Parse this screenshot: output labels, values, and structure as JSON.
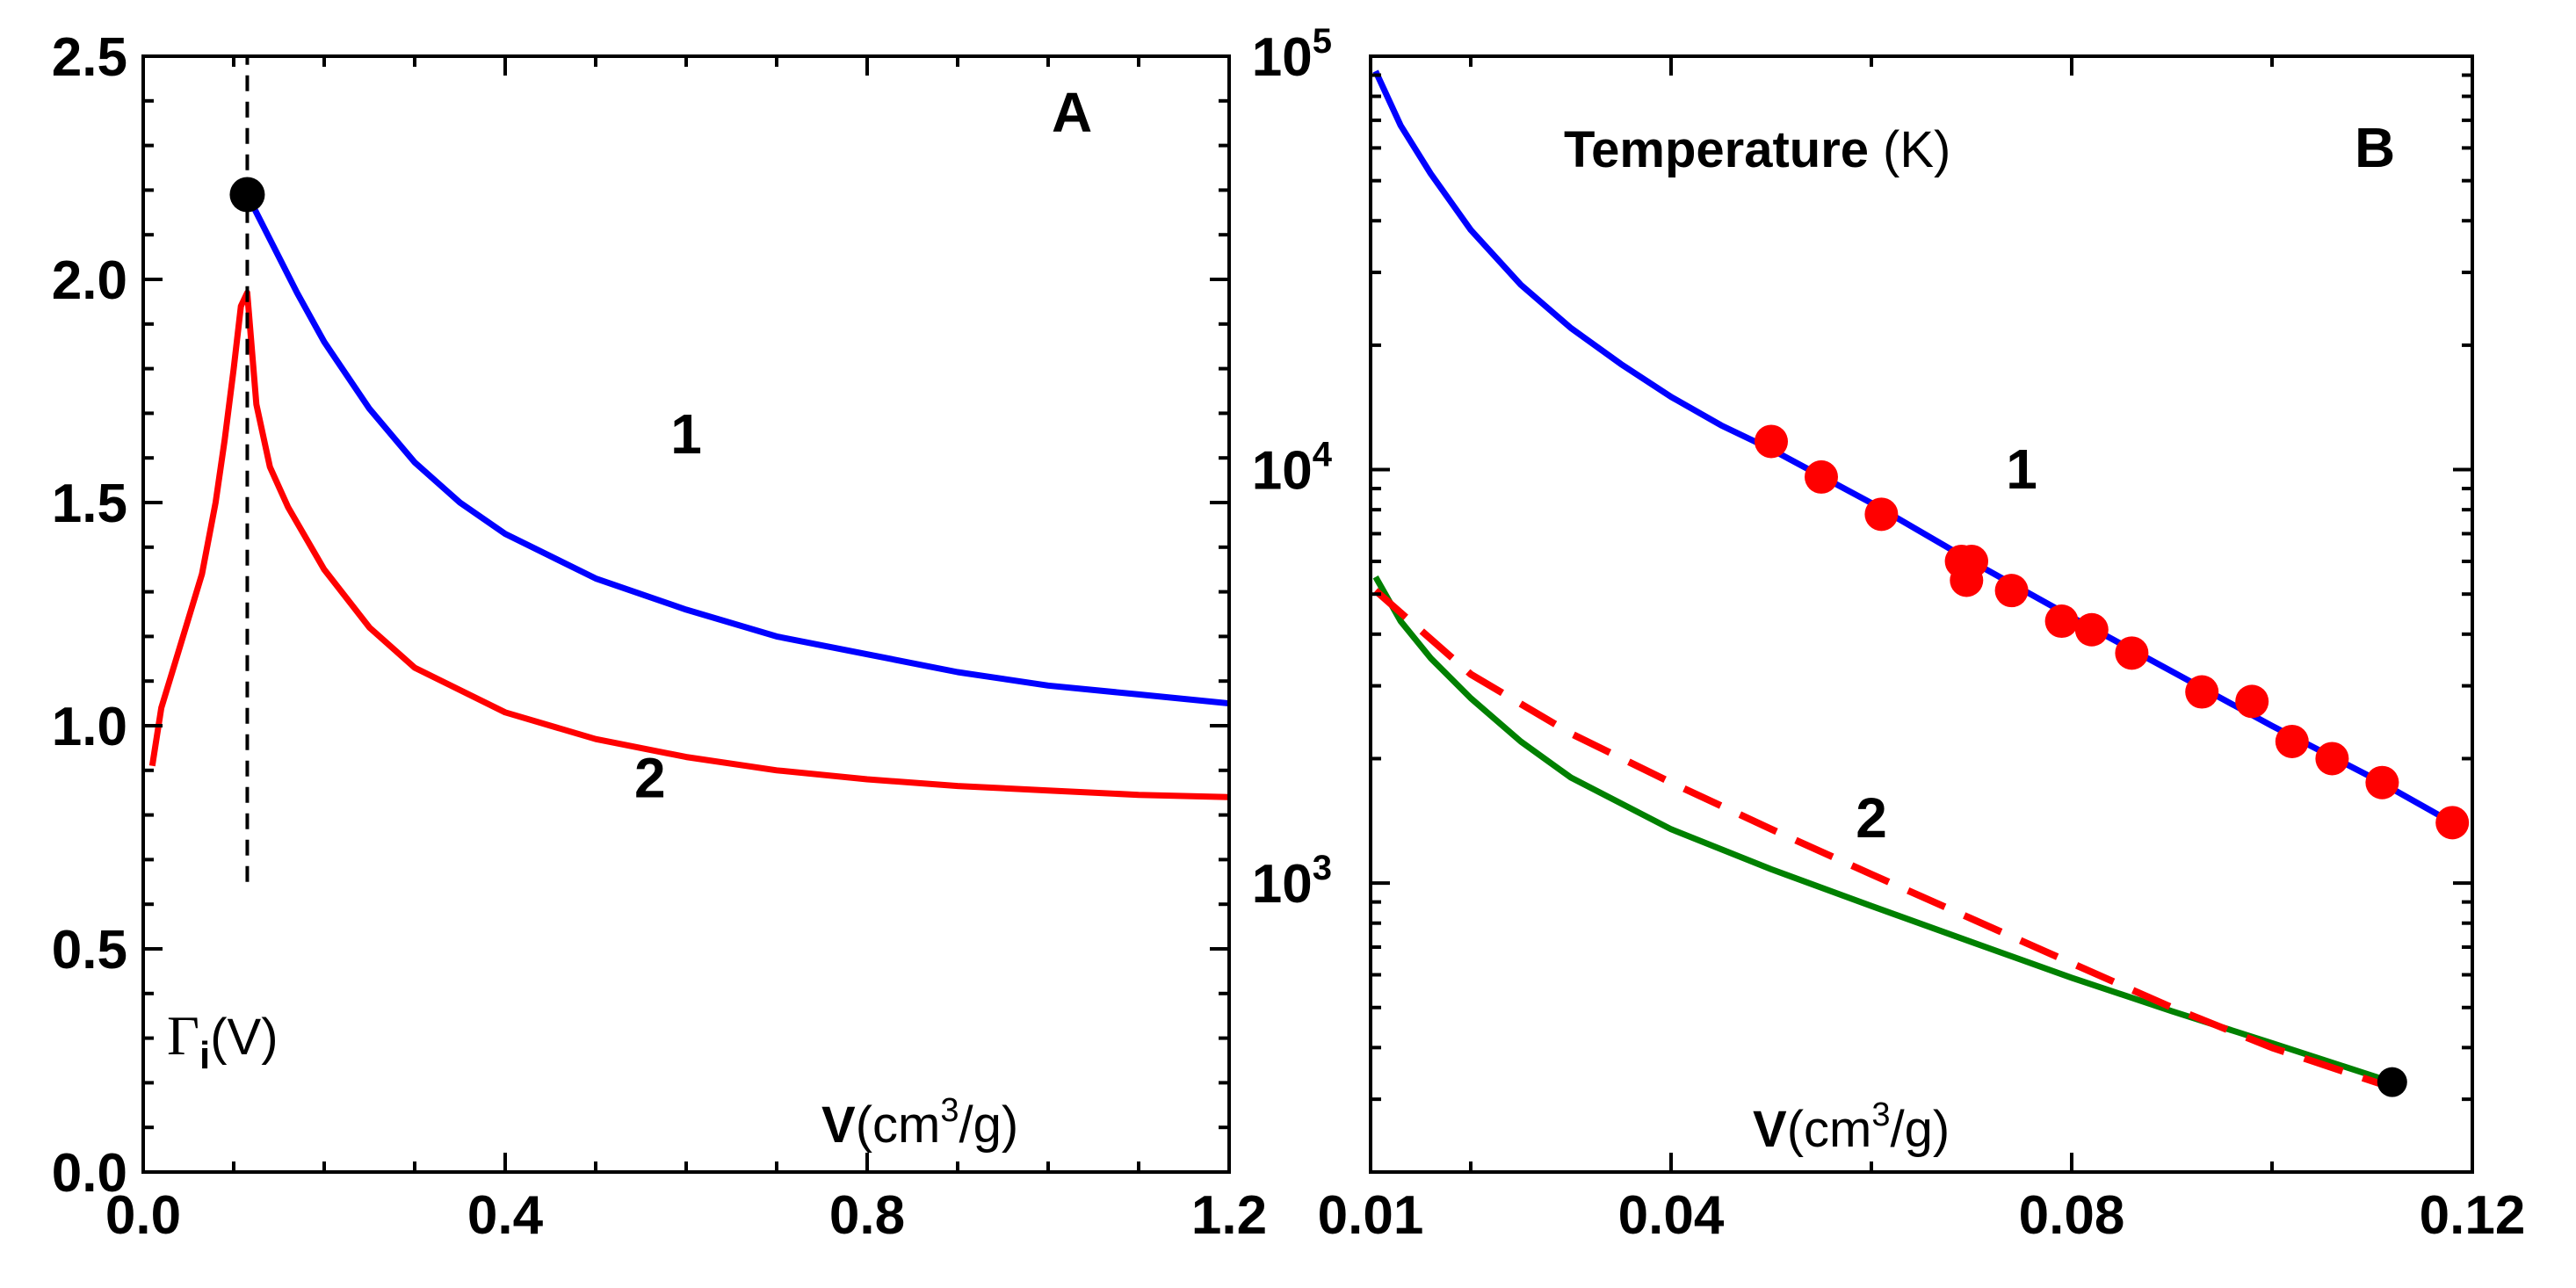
{
  "chart_data": [
    {
      "panel": "A",
      "type": "line",
      "x_scale": "linear",
      "y_scale": "linear",
      "xlim": [
        0.0,
        1.2
      ],
      "ylim": [
        0.0,
        2.5
      ],
      "x_ticks": [
        0.0,
        0.4,
        0.8,
        1.2
      ],
      "x_tick_labels": [
        "0.0",
        "0.4",
        "0.8",
        "1.2"
      ],
      "y_ticks": [
        0.0,
        0.5,
        1.0,
        1.5,
        2.0,
        2.5
      ],
      "y_tick_labels": [
        "0.0",
        "0.5",
        "1.0",
        "1.5",
        "2.0",
        "2.5"
      ],
      "panel_label": "A",
      "xlabel": {
        "symbol": "V",
        "unit_prefix": "(cm",
        "unit_sup": "3",
        "unit_suffix": "/g)"
      },
      "ylabel": {
        "symbol": "Γ",
        "sub": "i",
        "arg": "(V)"
      },
      "vline_x": 0.115,
      "vline_y_range": [
        0.65,
        2.5
      ],
      "marker": {
        "x": 0.115,
        "y": 2.19,
        "color": "#000000"
      },
      "series": [
        {
          "name": "1",
          "color": "#0000ff",
          "x": [
            0.115,
            0.14,
            0.17,
            0.2,
            0.25,
            0.3,
            0.35,
            0.4,
            0.5,
            0.6,
            0.7,
            0.8,
            0.9,
            1.0,
            1.1,
            1.2
          ],
          "y": [
            2.19,
            2.09,
            1.97,
            1.86,
            1.71,
            1.59,
            1.5,
            1.43,
            1.33,
            1.26,
            1.2,
            1.16,
            1.12,
            1.09,
            1.07,
            1.05
          ]
        },
        {
          "name": "2",
          "color": "#ff0000",
          "x": [
            0.01,
            0.02,
            0.035,
            0.05,
            0.065,
            0.08,
            0.09,
            0.1,
            0.108,
            0.115,
            0.125,
            0.14,
            0.16,
            0.2,
            0.25,
            0.3,
            0.4,
            0.5,
            0.6,
            0.7,
            0.8,
            0.9,
            1.0,
            1.1,
            1.2
          ],
          "y": [
            0.91,
            1.04,
            1.14,
            1.24,
            1.34,
            1.5,
            1.64,
            1.8,
            1.94,
            1.97,
            1.72,
            1.58,
            1.49,
            1.35,
            1.22,
            1.13,
            1.03,
            0.97,
            0.93,
            0.9,
            0.88,
            0.865,
            0.855,
            0.845,
            0.84
          ]
        }
      ],
      "curve_labels": [
        {
          "text": "1",
          "x": 0.6,
          "y": 1.61
        },
        {
          "text": "2",
          "x": 0.56,
          "y": 0.84
        }
      ]
    },
    {
      "panel": "B",
      "type": "line",
      "x_scale": "linear",
      "y_scale": "log",
      "xlim": [
        0.01,
        0.12
      ],
      "ylim": [
        200,
        100000
      ],
      "x_ticks": [
        0.01,
        0.04,
        0.08,
        0.12
      ],
      "x_tick_labels": [
        "0.01",
        "0.04",
        "0.08",
        "0.12"
      ],
      "y_ticks": [
        1000,
        10000,
        100000
      ],
      "y_tick_base": "10",
      "y_tick_exponents": [
        "3",
        "4",
        "5"
      ],
      "panel_label": "B",
      "title": "Temperature",
      "title_unit": "(K)",
      "xlabel": {
        "symbol": "V",
        "unit_prefix": "(cm",
        "unit_sup": "3",
        "unit_suffix": "/g)"
      },
      "marker": {
        "x": 0.112,
        "y": 330,
        "color": "#000000"
      },
      "series": [
        {
          "name": "1",
          "color": "#0000ff",
          "style": "solid",
          "x": [
            0.0105,
            0.013,
            0.016,
            0.02,
            0.025,
            0.03,
            0.035,
            0.04,
            0.045,
            0.05,
            0.06,
            0.07,
            0.08,
            0.09,
            0.1,
            0.11,
            0.118
          ],
          "y": [
            92000,
            68000,
            52000,
            38000,
            28000,
            22000,
            18000,
            15000,
            12800,
            11200,
            8300,
            6000,
            4400,
            3250,
            2400,
            1800,
            1400
          ]
        },
        {
          "name": "2 (solid)",
          "color": "#008000",
          "style": "solid",
          "x": [
            0.0105,
            0.013,
            0.016,
            0.02,
            0.025,
            0.03,
            0.04,
            0.05,
            0.06,
            0.07,
            0.08,
            0.09,
            0.1,
            0.112
          ],
          "y": [
            5500,
            4300,
            3500,
            2800,
            2200,
            1800,
            1350,
            1080,
            880,
            720,
            590,
            490,
            410,
            330
          ]
        },
        {
          "name": "2 (dashed)",
          "color": "#ff0000",
          "style": "dashed",
          "x": [
            0.0105,
            0.02,
            0.03,
            0.04,
            0.05,
            0.06,
            0.07,
            0.08,
            0.09,
            0.1,
            0.112
          ],
          "y": [
            5100,
            3200,
            2300,
            1750,
            1350,
            1050,
            820,
            640,
            500,
            400,
            320
          ]
        }
      ],
      "scatter": {
        "color": "#ff0000",
        "x": [
          0.05,
          0.055,
          0.061,
          0.069,
          0.07,
          0.0695,
          0.074,
          0.079,
          0.082,
          0.086,
          0.093,
          0.098,
          0.102,
          0.106,
          0.111,
          0.118
        ],
        "y": [
          11700,
          9600,
          7800,
          6000,
          6000,
          5400,
          5100,
          4300,
          4100,
          3600,
          2900,
          2750,
          2200,
          2000,
          1750,
          1400
        ]
      },
      "curve_labels": [
        {
          "text": "1",
          "x": 0.075,
          "y": 9000
        },
        {
          "text": "2",
          "x": 0.06,
          "y": 1290
        }
      ]
    }
  ]
}
